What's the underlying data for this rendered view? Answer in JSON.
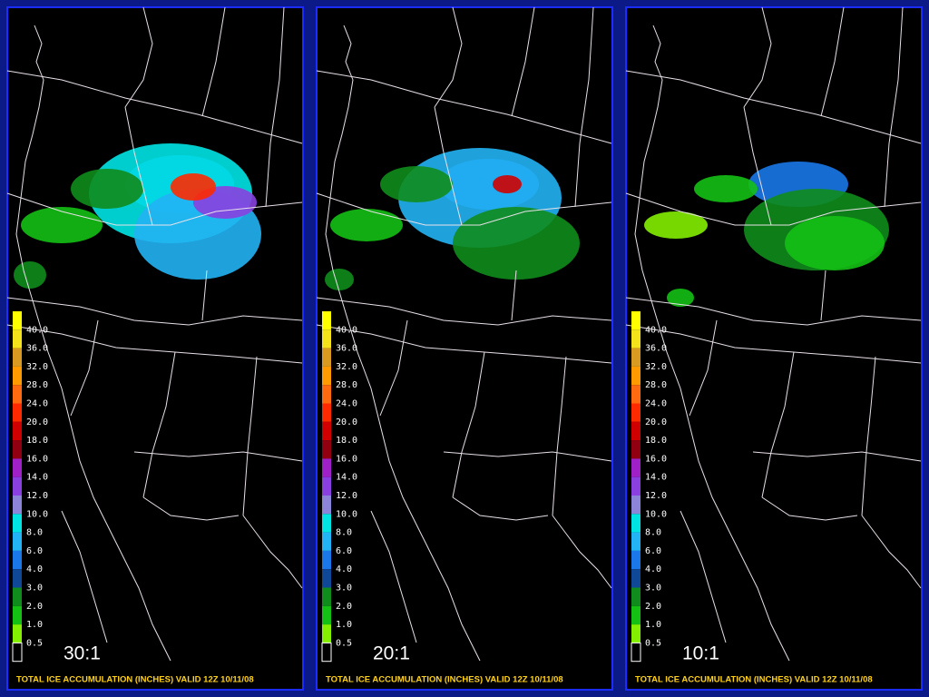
{
  "legend": {
    "labels": [
      "40.0",
      "36.0",
      "32.0",
      "28.0",
      "24.0",
      "20.0",
      "18.0",
      "16.0",
      "14.0",
      "12.0",
      "10.0",
      "8.0",
      "6.0",
      "4.0",
      "3.0",
      "2.0",
      "1.0",
      "0.5"
    ],
    "colors": [
      "#ffff00",
      "#f4e21a",
      "#d89a20",
      "#ff9a00",
      "#ff6a10",
      "#ff2a00",
      "#d00000",
      "#900010",
      "#a020c8",
      "#8a40e0",
      "#8c84d8",
      "#00e4e4",
      "#22b4f4",
      "#1a78e8",
      "#104898",
      "#108c1c",
      "#14c014",
      "#84f000",
      "#000000"
    ]
  },
  "panels": [
    {
      "ratio": "30:1",
      "caption": "TOTAL ICE ACCUMULATION (INCHES) VALID 12Z 10/11/08"
    },
    {
      "ratio": "20:1",
      "caption": "TOTAL ICE ACCUMULATION (INCHES) VALID 12Z 10/11/08"
    },
    {
      "ratio": "10:1",
      "caption": "TOTAL ICE ACCUMULATION (INCHES) VALID 12Z 10/11/08"
    }
  ]
}
